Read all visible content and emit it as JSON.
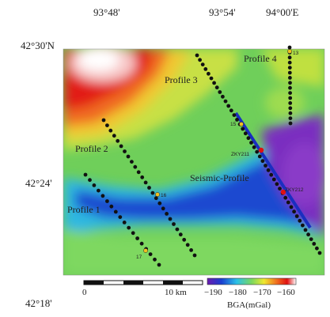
{
  "axes": {
    "top_ticks": [
      "93°48'",
      "93°54'",
      "94°00'E"
    ],
    "left_ticks": [
      "42°30'N",
      "42°24'",
      "42°18'"
    ]
  },
  "profiles": {
    "p1": "Profile 1",
    "p2": "Profile 2",
    "p3": "Profile 3",
    "p4": "Profile 4",
    "seismic": "Seismic-Profile"
  },
  "stations": {
    "s13": "13",
    "s15": "15",
    "s16": "16",
    "s17": "17",
    "zky211": "ZKY211",
    "zky212": "ZKY212"
  },
  "scalebar": {
    "zero": "0",
    "ten": "10 km"
  },
  "colorbar": {
    "ticks": [
      "−190",
      "−180",
      "−170",
      "−160"
    ],
    "label": "BGA(mGal)",
    "colors": [
      "#6a1bb0",
      "#1a3fd0",
      "#2bc0e8",
      "#7ad860",
      "#f0e830",
      "#f07020",
      "#e01010",
      "#ffffff"
    ]
  }
}
